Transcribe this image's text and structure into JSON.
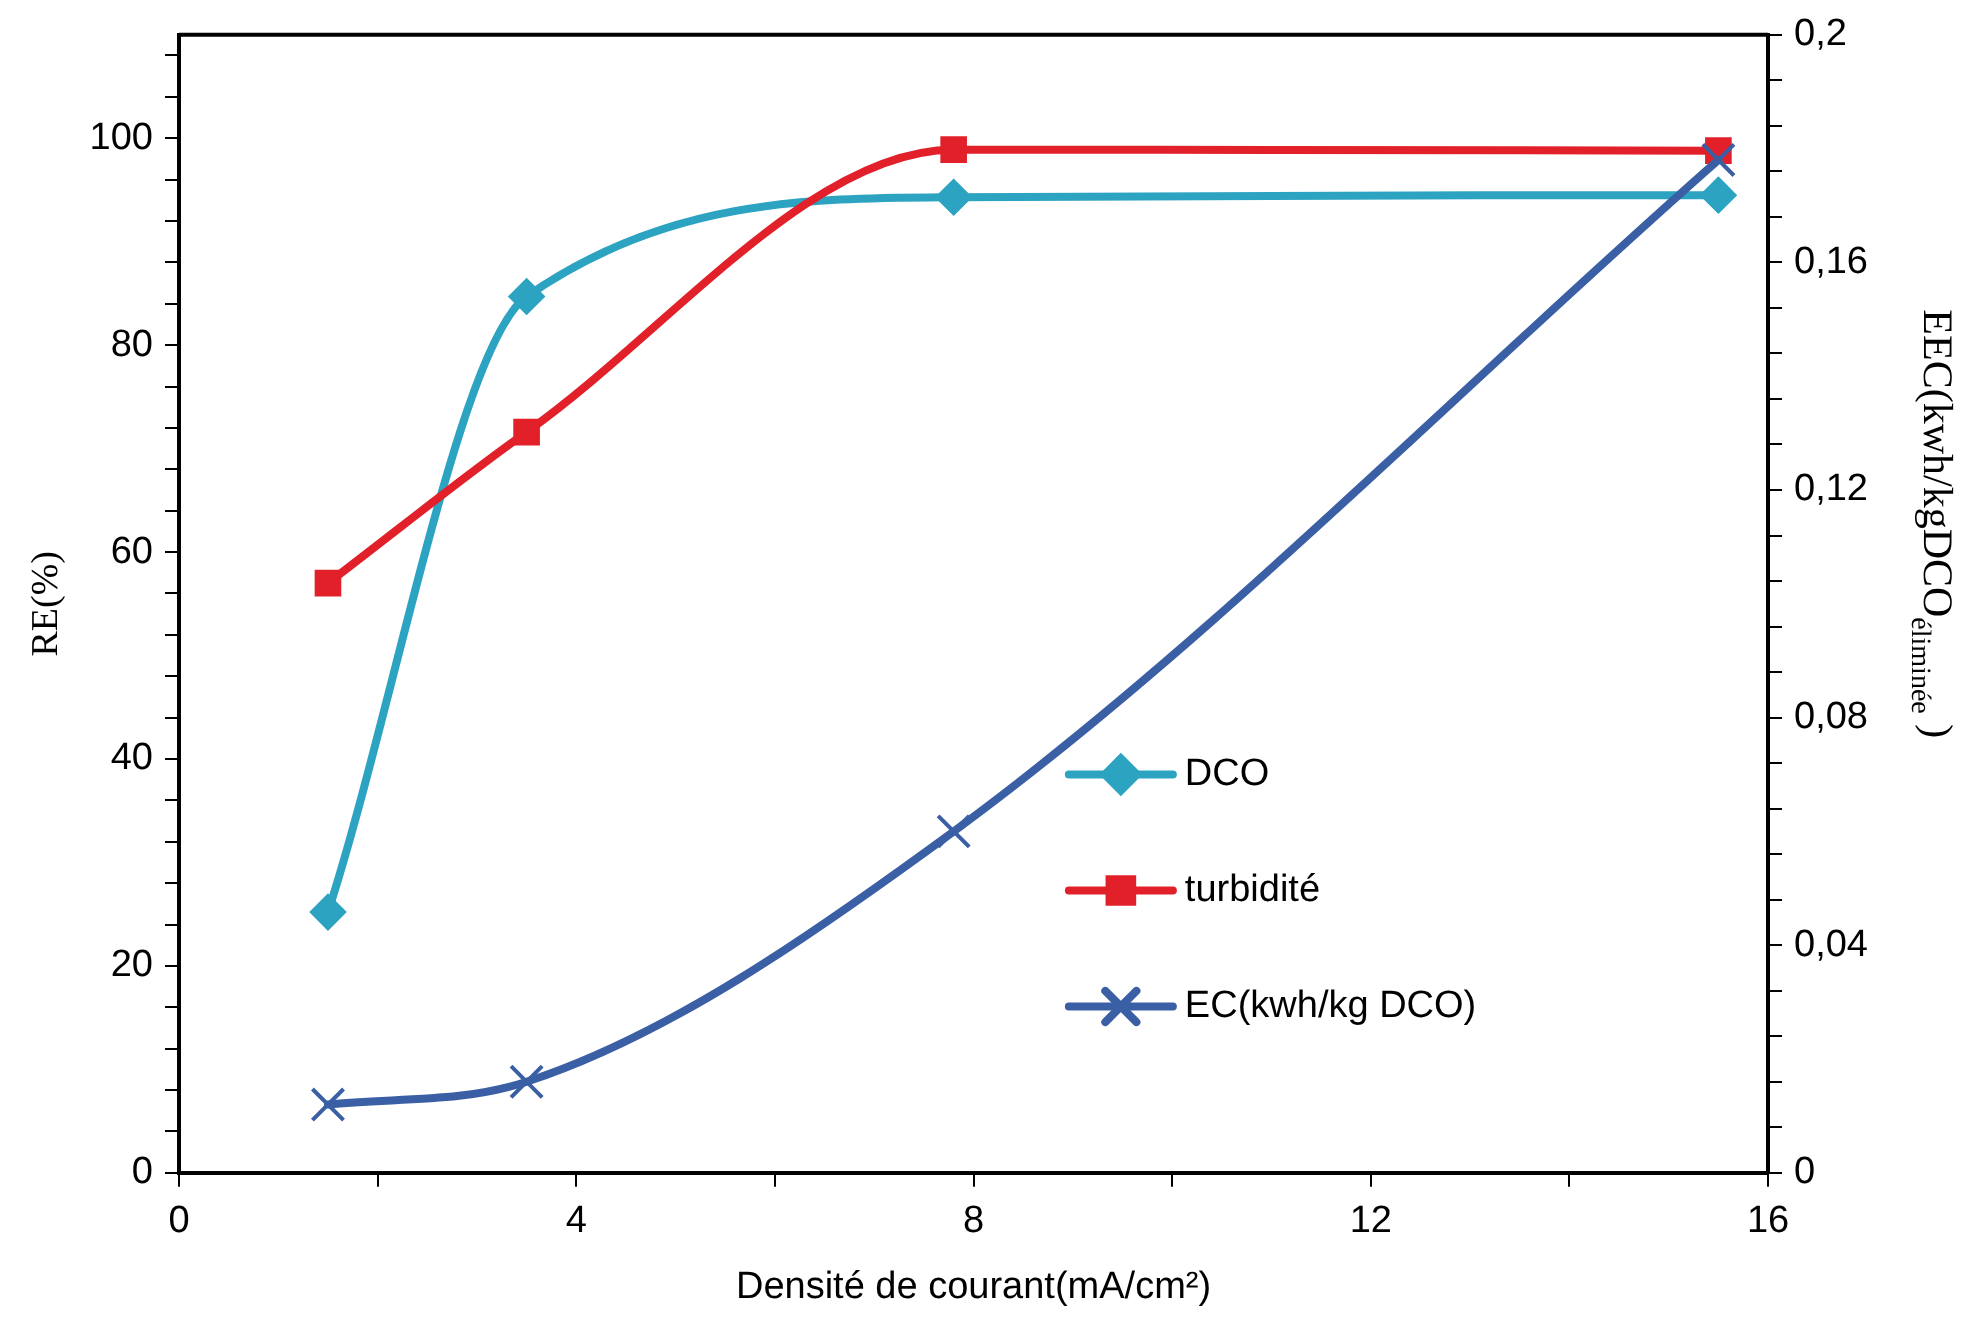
{
  "chart_data": {
    "type": "line",
    "xlabel": "Densité de courant(mA/cm²)",
    "ylabel": "RE(%)",
    "y2label": "EEC(kwh/kgDCO$_{éliminée}$ )",
    "xlim": [
      0,
      16
    ],
    "xticks": [
      0,
      {
        "value": 2,
        "label": null
      },
      4,
      {
        "value": 6,
        "label": null
      },
      8,
      {
        "value": 10,
        "label": null
      },
      12,
      {
        "value": 14,
        "label": null
      },
      16
    ],
    "ylim": [
      0,
      110
    ],
    "yticks": [
      0,
      {
        "value": 4,
        "label": null
      },
      {
        "value": 8,
        "label": null
      },
      {
        "value": 12,
        "label": null
      },
      {
        "value": 16,
        "label": null
      },
      20,
      {
        "value": 24,
        "label": null
      },
      {
        "value": 28,
        "label": null
      },
      {
        "value": 32,
        "label": null
      },
      {
        "value": 36,
        "label": null
      },
      40,
      {
        "value": 44,
        "label": null
      },
      {
        "value": 48,
        "label": null
      },
      {
        "value": 52,
        "label": null
      },
      {
        "value": 56,
        "label": null
      },
      60,
      {
        "value": 64,
        "label": null
      },
      {
        "value": 68,
        "label": null
      },
      {
        "value": 72,
        "label": null
      },
      {
        "value": 76,
        "label": null
      },
      80,
      {
        "value": 84,
        "label": null
      },
      {
        "value": 88,
        "label": null
      },
      {
        "value": 92,
        "label": null
      },
      {
        "value": 96,
        "label": null
      },
      100,
      {
        "value": 104,
        "label": null
      },
      {
        "value": 108,
        "label": null
      }
    ],
    "y2lim": [
      0,
      0.2
    ],
    "y2ticks": [
      0,
      {
        "value": 0.008,
        "label": null
      },
      {
        "value": 0.016,
        "label": null
      },
      {
        "value": 0.024,
        "label": null
      },
      {
        "value": 0.032,
        "label": null
      },
      {
        "value": 0.04,
        "label": "0,04"
      },
      {
        "value": 0.048,
        "label": null
      },
      {
        "value": 0.056,
        "label": null
      },
      {
        "value": 0.064,
        "label": null
      },
      {
        "value": 0.072,
        "label": null
      },
      {
        "value": 0.08,
        "label": "0,08"
      },
      {
        "value": 0.088,
        "label": null
      },
      {
        "value": 0.096,
        "label": null
      },
      {
        "value": 0.104,
        "label": null
      },
      {
        "value": 0.112,
        "label": null
      },
      {
        "value": 0.12,
        "label": "0,12"
      },
      {
        "value": 0.128,
        "label": null
      },
      {
        "value": 0.136,
        "label": null
      },
      {
        "value": 0.144,
        "label": null
      },
      {
        "value": 0.152,
        "label": null
      },
      {
        "value": 0.16,
        "label": "0,16"
      },
      {
        "value": 0.168,
        "label": null
      },
      {
        "value": 0.176,
        "label": null
      },
      {
        "value": 0.184,
        "label": null
      },
      {
        "value": 0.192,
        "label": null
      },
      {
        "value": 0.2,
        "label": "0,2"
      }
    ],
    "x": [
      1.5,
      3.5,
      7.8,
      15.5
    ],
    "series": [
      {
        "name": "DCO",
        "color": "#2ca3c1",
        "marker": "diamond",
        "values": [
          25.2,
          84.7,
          94.3,
          94.5
        ]
      },
      {
        "name": "turbidité",
        "color": "#e2202a",
        "marker": "square",
        "values": [
          57,
          71.6,
          98.9,
          98.8
        ]
      },
      {
        "name": "EC(kwh/kg DCO)",
        "color": "#3a5fa5",
        "marker": "cross",
        "axis": "y2",
        "values": [
          0.012,
          0.016,
          0.06,
          0.178
        ]
      }
    ],
    "legend": "right",
    "grid": false
  }
}
